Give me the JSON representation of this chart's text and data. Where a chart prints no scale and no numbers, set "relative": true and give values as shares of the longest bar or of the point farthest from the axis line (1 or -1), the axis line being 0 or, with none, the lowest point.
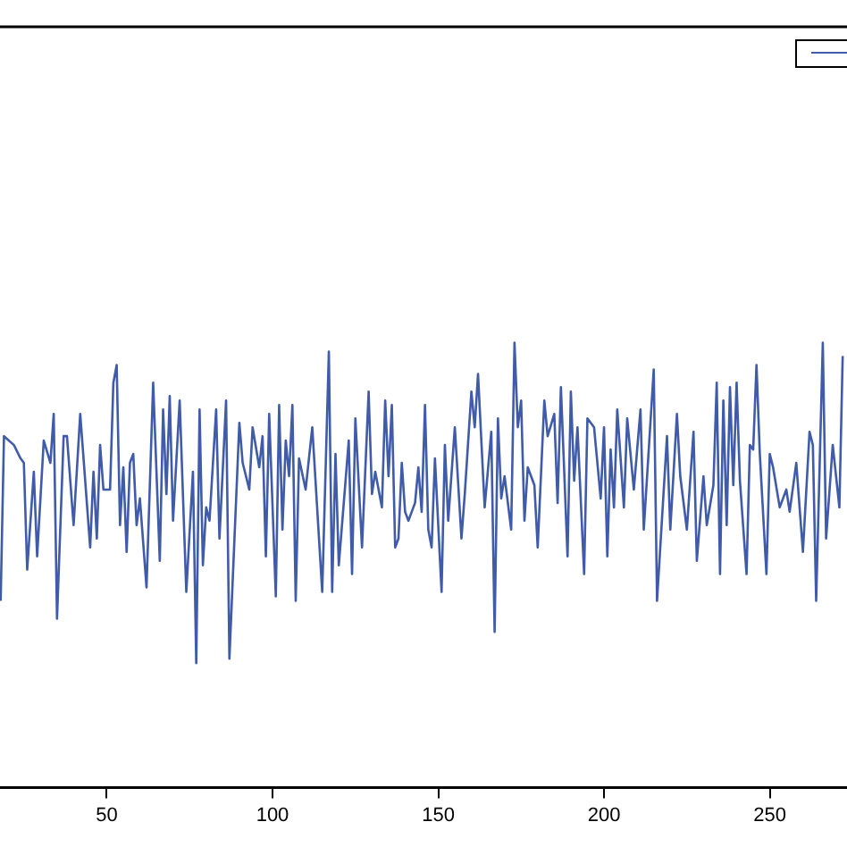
{
  "chart_data": {
    "type": "line",
    "relative": true,
    "xlim": [
      17.8,
      273.3
    ],
    "xticks": [
      50,
      100,
      150,
      200,
      250
    ],
    "grid": false,
    "marker": "none",
    "line_style": "solid",
    "series": [
      {
        "color": "#3f5ba9",
        "x": [
          18,
          19,
          22,
          24,
          25,
          26,
          28,
          29,
          31,
          33,
          34,
          35,
          37,
          38,
          40,
          42,
          45,
          46,
          47,
          48,
          49,
          51,
          52,
          53,
          54,
          55,
          56,
          57,
          58,
          59,
          60,
          62,
          64,
          66,
          67,
          68,
          69,
          70,
          72,
          74,
          76,
          77,
          78,
          79,
          80,
          81,
          83,
          84,
          86,
          87,
          90,
          91,
          93,
          94,
          96,
          97,
          98,
          99,
          101,
          102,
          103,
          104,
          105,
          106,
          107,
          108,
          110,
          112,
          115,
          117,
          118,
          119,
          120,
          123,
          124,
          125,
          127,
          129,
          130,
          131,
          133,
          134,
          135,
          136,
          137,
          138,
          139,
          140,
          141,
          143,
          144,
          145,
          146,
          147,
          148,
          149,
          151,
          152,
          153,
          155,
          157,
          158,
          160,
          161,
          162,
          164,
          166,
          167,
          168,
          169,
          170,
          172,
          173,
          174,
          175,
          176,
          177,
          179,
          180,
          182,
          183,
          185,
          186,
          187,
          189,
          190,
          191,
          192,
          194,
          195,
          197,
          199,
          200,
          201,
          202,
          203,
          204,
          206,
          207,
          209,
          211,
          212,
          215,
          216,
          219,
          220,
          222,
          223,
          225,
          227,
          228,
          230,
          231,
          233,
          234,
          235,
          236,
          237,
          238,
          239,
          240,
          241,
          243,
          244,
          245,
          246,
          247,
          249,
          250,
          251,
          253,
          255,
          256,
          258,
          260,
          262,
          263,
          264,
          266,
          267,
          269,
          271,
          272
        ],
        "values": [
          0.42,
          0.79,
          0.77,
          0.74,
          0.73,
          0.49,
          0.71,
          0.52,
          0.78,
          0.73,
          0.84,
          0.38,
          0.79,
          0.79,
          0.59,
          0.84,
          0.54,
          0.71,
          0.56,
          0.77,
          0.67,
          0.67,
          0.91,
          0.95,
          0.59,
          0.72,
          0.53,
          0.73,
          0.75,
          0.59,
          0.65,
          0.45,
          0.91,
          0.51,
          0.85,
          0.66,
          0.88,
          0.6,
          0.87,
          0.44,
          0.71,
          0.28,
          0.85,
          0.5,
          0.63,
          0.6,
          0.85,
          0.56,
          0.87,
          0.29,
          0.82,
          0.73,
          0.67,
          0.81,
          0.72,
          0.79,
          0.52,
          0.84,
          0.43,
          0.86,
          0.58,
          0.78,
          0.7,
          0.86,
          0.42,
          0.74,
          0.67,
          0.81,
          0.44,
          0.98,
          0.44,
          0.75,
          0.5,
          0.78,
          0.48,
          0.83,
          0.54,
          0.89,
          0.66,
          0.71,
          0.63,
          0.87,
          0.7,
          0.86,
          0.54,
          0.56,
          0.73,
          0.62,
          0.6,
          0.64,
          0.72,
          0.62,
          0.86,
          0.58,
          0.54,
          0.74,
          0.44,
          0.77,
          0.6,
          0.81,
          0.56,
          0.66,
          0.89,
          0.81,
          0.93,
          0.63,
          0.8,
          0.35,
          0.83,
          0.65,
          0.7,
          0.58,
          1,
          0.81,
          0.87,
          0.6,
          0.72,
          0.68,
          0.54,
          0.87,
          0.79,
          0.84,
          0.64,
          0.9,
          0.52,
          0.89,
          0.69,
          0.81,
          0.48,
          0.83,
          0.81,
          0.65,
          0.81,
          0.52,
          0.76,
          0.63,
          0.85,
          0.63,
          0.83,
          0.67,
          0.85,
          0.58,
          0.94,
          0.42,
          0.79,
          0.58,
          0.84,
          0.7,
          0.58,
          0.8,
          0.51,
          0.7,
          0.59,
          0.68,
          0.91,
          0.48,
          0.87,
          0.59,
          0.9,
          0.68,
          0.91,
          0.69,
          0.48,
          0.77,
          0.76,
          0.95,
          0.75,
          0.48,
          0.75,
          0.72,
          0.63,
          0.67,
          0.62,
          0.73,
          0.53,
          0.8,
          0.77,
          0.42,
          1,
          0.56,
          0.77,
          0.63,
          0.97
        ]
      }
    ]
  }
}
